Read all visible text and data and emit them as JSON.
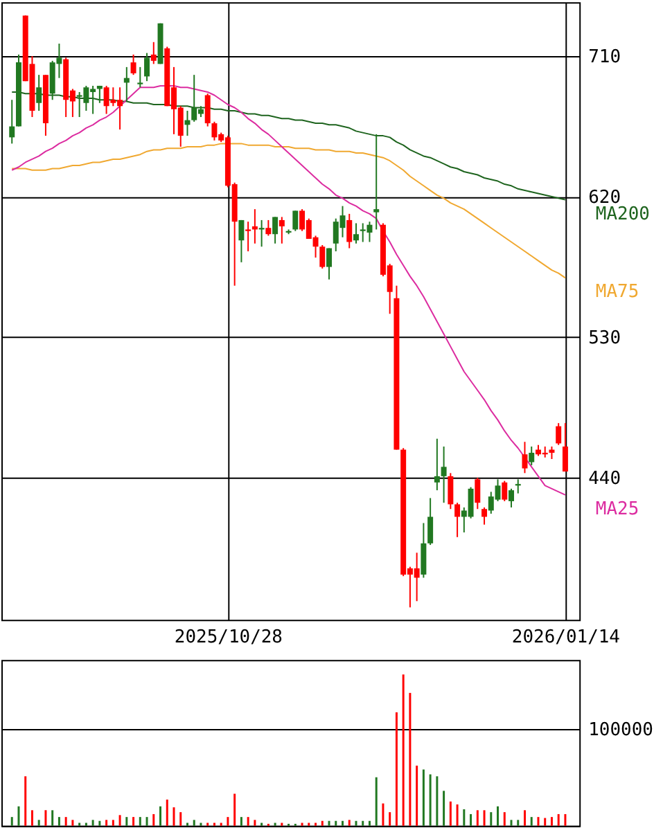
{
  "chart_data": [
    {
      "type": "candlestick",
      "categories": [
        null,
        null,
        null,
        null,
        null,
        null,
        null,
        null,
        null,
        null,
        null,
        null,
        null,
        null,
        null,
        null,
        null,
        null,
        null,
        null,
        null,
        null,
        null,
        null,
        null,
        null,
        null,
        null,
        null,
        null,
        null,
        null,
        "2025/10/28",
        null,
        null,
        null,
        null,
        null,
        null,
        null,
        null,
        null,
        null,
        null,
        null,
        null,
        null,
        null,
        null,
        null,
        null,
        null,
        null,
        null,
        null,
        null,
        null,
        null,
        null,
        null,
        null,
        null,
        null,
        null,
        null,
        null,
        null,
        null,
        null,
        null,
        null,
        null,
        null,
        null,
        null,
        null,
        null,
        null,
        null,
        null,
        null,
        null,
        "2026/01/14"
      ],
      "ohlc": [
        [
          658,
          682,
          654,
          665
        ],
        [
          665,
          711,
          665,
          706
        ],
        [
          736,
          736,
          694,
          694
        ],
        [
          705,
          710,
          671,
          675
        ],
        [
          680,
          698,
          675,
          690
        ],
        [
          698,
          698,
          659,
          667
        ],
        [
          686,
          707,
          682,
          706
        ],
        [
          705,
          718,
          696,
          709
        ],
        [
          708,
          709,
          671,
          682
        ],
        [
          688,
          689,
          671,
          681
        ],
        [
          684,
          687,
          671,
          685
        ],
        [
          680,
          691,
          675,
          690
        ],
        [
          687,
          691,
          673,
          689
        ],
        [
          689,
          691,
          680,
          691
        ],
        [
          690,
          691,
          673,
          678
        ],
        [
          682,
          690,
          678,
          680
        ],
        [
          682,
          690,
          663,
          678
        ],
        [
          693,
          703,
          681,
          696
        ],
        [
          706,
          711,
          698,
          699
        ],
        [
          692,
          703,
          690,
          693
        ],
        [
          697,
          712,
          694,
          709
        ],
        [
          711,
          719,
          705,
          707
        ],
        [
          705,
          731,
          705,
          731
        ],
        [
          715,
          716,
          678,
          678
        ],
        [
          690,
          703,
          660,
          676
        ],
        [
          677,
          678,
          652,
          659
        ],
        [
          666,
          675,
          659,
          669
        ],
        [
          669,
          698,
          668,
          677
        ],
        [
          673,
          678,
          671,
          676
        ],
        [
          685,
          686,
          665,
          667
        ],
        [
          667,
          668,
          656,
          658
        ],
        [
          660,
          661,
          655,
          656
        ],
        [
          658,
          659,
          626,
          627
        ],
        [
          628,
          629,
          563,
          604
        ],
        [
          592,
          605,
          578,
          605
        ],
        [
          599,
          604,
          585,
          598
        ],
        [
          601,
          612,
          590,
          599
        ],
        [
          599,
          605,
          588,
          600
        ],
        [
          600,
          605,
          595,
          596
        ],
        [
          596,
          607,
          590,
          607
        ],
        [
          605,
          607,
          590,
          601
        ],
        [
          597,
          599,
          596,
          598
        ],
        [
          599,
          611,
          598,
          611
        ],
        [
          611,
          612,
          598,
          599
        ],
        [
          605,
          606,
          593,
          593
        ],
        [
          594,
          595,
          581,
          588
        ],
        [
          588,
          589,
          574,
          575
        ],
        [
          575,
          587,
          567,
          587
        ],
        [
          590,
          606,
          585,
          604
        ],
        [
          600,
          614,
          594,
          608
        ],
        [
          605,
          609,
          587,
          591
        ],
        [
          592,
          603,
          590,
          596
        ],
        [
          598,
          603,
          591,
          599
        ],
        [
          597,
          604,
          591,
          602
        ],
        [
          610,
          660,
          599,
          612
        ],
        [
          602,
          603,
          569,
          570
        ],
        [
          576,
          577,
          545,
          559
        ],
        [
          555,
          563,
          458,
          458
        ],
        [
          458,
          459,
          377,
          378
        ],
        [
          382,
          383,
          357,
          378
        ],
        [
          382,
          392,
          361,
          376
        ],
        [
          378,
          411,
          376,
          398
        ],
        [
          398,
          427,
          397,
          415
        ],
        [
          437,
          465,
          432,
          441
        ],
        [
          441,
          460,
          424,
          447
        ],
        [
          441,
          443,
          420,
          423
        ],
        [
          423,
          424,
          402,
          415
        ],
        [
          415,
          421,
          405,
          419
        ],
        [
          415,
          434,
          414,
          433
        ],
        [
          439,
          440,
          420,
          424
        ],
        [
          420,
          421,
          410,
          415
        ],
        [
          419,
          431,
          417,
          428
        ],
        [
          426,
          439,
          425,
          435
        ],
        [
          437,
          438,
          425,
          426
        ],
        [
          425,
          433,
          421,
          432
        ],
        [
          435,
          439,
          430,
          436
        ],
        [
          455,
          463,
          443,
          446
        ],
        [
          450,
          460,
          448,
          456
        ],
        [
          458,
          461,
          454,
          455
        ],
        [
          456,
          460,
          453,
          455
        ],
        [
          458,
          460,
          452,
          456
        ],
        [
          473,
          475,
          461,
          462
        ],
        [
          460,
          475,
          444,
          444
        ]
      ],
      "colors": [
        "#217821",
        "#217821",
        "#ff0000",
        "#ff0000",
        "#217821",
        "#ff0000",
        "#217821",
        "#217821",
        "#ff0000",
        "#ff0000",
        "#217821",
        "#217821",
        "#217821",
        "#217821",
        "#ff0000",
        "#ff0000",
        "#ff0000",
        "#217821",
        "#ff0000",
        "#217821",
        "#217821",
        "#ff0000",
        "#217821",
        "#ff0000",
        "#ff0000",
        "#ff0000",
        "#217821",
        "#217821",
        "#217821",
        "#ff0000",
        "#ff0000",
        "#ff0000",
        "#ff0000",
        "#ff0000",
        "#217821",
        "#ff0000",
        "#ff0000",
        "#217821",
        "#ff0000",
        "#217821",
        "#ff0000",
        "#217821",
        "#217821",
        "#ff0000",
        "#ff0000",
        "#ff0000",
        "#ff0000",
        "#217821",
        "#217821",
        "#217821",
        "#ff0000",
        "#217821",
        "#217821",
        "#217821",
        "#217821",
        "#ff0000",
        "#ff0000",
        "#ff0000",
        "#ff0000",
        "#ff0000",
        "#ff0000",
        "#217821",
        "#217821",
        "#217821",
        "#217821",
        "#ff0000",
        "#ff0000",
        "#217821",
        "#217821",
        "#ff0000",
        "#ff0000",
        "#217821",
        "#217821",
        "#ff0000",
        "#217821",
        "#217821",
        "#ff0000",
        "#217821",
        "#ff0000",
        "#ff0000",
        "#ff0000",
        "#ff0000",
        "#ff0000"
      ],
      "series": [
        {
          "name": "MA200",
          "type": "line",
          "color": "#1e641e",
          "values": [
            687,
            687,
            686,
            686,
            686,
            685,
            685,
            685,
            684,
            684,
            683,
            683,
            683,
            682,
            682,
            682,
            681,
            681,
            680,
            680,
            680,
            679,
            679,
            679,
            678,
            678,
            678,
            677,
            677,
            677,
            676,
            676,
            675,
            675,
            674,
            673,
            673,
            672,
            672,
            671,
            670,
            670,
            669,
            669,
            668,
            667,
            667,
            666,
            666,
            665,
            664,
            662,
            661,
            660,
            659,
            659,
            658,
            655,
            653,
            650,
            648,
            646,
            645,
            643,
            641,
            639,
            638,
            636,
            635,
            634,
            632,
            631,
            630,
            628,
            627,
            625,
            624,
            623,
            622,
            621,
            620,
            619,
            618
          ]
        },
        {
          "name": "MA75",
          "type": "line",
          "color": "#f0a830",
          "values": [
            638,
            638,
            638,
            637,
            637,
            637,
            638,
            638,
            639,
            640,
            640,
            641,
            642,
            642,
            643,
            644,
            644,
            645,
            646,
            647,
            649,
            650,
            650,
            651,
            651,
            651,
            652,
            652,
            652,
            653,
            653,
            654,
            654,
            654,
            654,
            653,
            653,
            653,
            653,
            652,
            652,
            652,
            651,
            651,
            651,
            650,
            650,
            650,
            649,
            649,
            649,
            648,
            648,
            647,
            646,
            645,
            643,
            640,
            637,
            633,
            630,
            627,
            624,
            621,
            619,
            616,
            614,
            612,
            609,
            606,
            603,
            600,
            597,
            594,
            591,
            588,
            585,
            582,
            579,
            576,
            573,
            571,
            568
          ]
        },
        {
          "name": "MA25",
          "type": "line",
          "color": "#dc2ca0",
          "values": [
            637,
            639,
            642,
            644,
            646,
            649,
            651,
            654,
            656,
            659,
            661,
            664,
            666,
            669,
            671,
            674,
            678,
            682,
            686,
            690,
            690,
            690,
            691,
            691,
            691,
            690,
            690,
            689,
            688,
            687,
            685,
            682,
            679,
            677,
            674,
            670,
            667,
            663,
            660,
            656,
            652,
            648,
            644,
            640,
            636,
            632,
            628,
            625,
            621,
            619,
            616,
            614,
            611,
            609,
            606,
            598,
            591,
            583,
            576,
            569,
            563,
            556,
            548,
            540,
            532,
            524,
            516,
            508,
            502,
            496,
            490,
            483,
            477,
            470,
            464,
            459,
            453,
            447,
            441,
            435,
            433,
            431,
            429
          ]
        }
      ],
      "ylim": [
        349,
        744.5
      ],
      "yticks": [
        440,
        530,
        620,
        710
      ],
      "grid": true
    },
    {
      "type": "bar",
      "categories": [
        null,
        null,
        null,
        null,
        null,
        null,
        null,
        null,
        null,
        null,
        null,
        null,
        null,
        null,
        null,
        null,
        null,
        null,
        null,
        null,
        null,
        null,
        null,
        null,
        null,
        null,
        null,
        null,
        null,
        null,
        null,
        null,
        null,
        null,
        null,
        null,
        null,
        null,
        null,
        null,
        null,
        null,
        null,
        null,
        null,
        null,
        null,
        null,
        null,
        null,
        null,
        null,
        null,
        null,
        null,
        null,
        null,
        null,
        null,
        null,
        null,
        null,
        null,
        null,
        null,
        null,
        null,
        null,
        null,
        null,
        null,
        null,
        null,
        null,
        null,
        null,
        null,
        null,
        null,
        null,
        null,
        null,
        null
      ],
      "values": [
        9000,
        20000,
        51000,
        16000,
        6000,
        16000,
        16000,
        9000,
        9000,
        6000,
        3000,
        3000,
        6000,
        5000,
        6000,
        6000,
        11000,
        9000,
        9000,
        9000,
        9000,
        12000,
        20000,
        27000,
        19000,
        14000,
        3000,
        6000,
        3000,
        3000,
        3000,
        3000,
        9000,
        33000,
        9000,
        9000,
        6000,
        3000,
        2000,
        3000,
        3000,
        2000,
        2000,
        3000,
        3000,
        3000,
        5000,
        5000,
        5000,
        5000,
        6000,
        5000,
        5000,
        5000,
        50000,
        23000,
        14000,
        117000,
        156000,
        137000,
        62000,
        58000,
        53000,
        51000,
        36000,
        25000,
        22000,
        17000,
        12000,
        16000,
        16000,
        14000,
        20000,
        14000,
        6000,
        6000,
        16000,
        9000,
        9000,
        8000,
        9000,
        12000,
        12000
      ],
      "ylim": [
        0,
        171000
      ],
      "yticks": [
        {
          "value": 0,
          "label": null
        },
        100000
      ],
      "colors": [
        "#217821",
        "#217821",
        "#ff0000",
        "#ff0000",
        "#217821",
        "#ff0000",
        "#217821",
        "#217821",
        "#ff0000",
        "#ff0000",
        "#217821",
        "#217821",
        "#217821",
        "#217821",
        "#ff0000",
        "#ff0000",
        "#ff0000",
        "#217821",
        "#ff0000",
        "#217821",
        "#217821",
        "#ff0000",
        "#217821",
        "#ff0000",
        "#ff0000",
        "#ff0000",
        "#217821",
        "#217821",
        "#217821",
        "#ff0000",
        "#ff0000",
        "#ff0000",
        "#ff0000",
        "#ff0000",
        "#217821",
        "#ff0000",
        "#ff0000",
        "#217821",
        "#ff0000",
        "#217821",
        "#ff0000",
        "#217821",
        "#217821",
        "#ff0000",
        "#ff0000",
        "#ff0000",
        "#ff0000",
        "#217821",
        "#217821",
        "#217821",
        "#ff0000",
        "#217821",
        "#217821",
        "#217821",
        "#217821",
        "#ff0000",
        "#ff0000",
        "#ff0000",
        "#ff0000",
        "#ff0000",
        "#ff0000",
        "#217821",
        "#217821",
        "#217821",
        "#217821",
        "#ff0000",
        "#ff0000",
        "#217821",
        "#217821",
        "#ff0000",
        "#ff0000",
        "#217821",
        "#217821",
        "#ff0000",
        "#217821",
        "#217821",
        "#ff0000",
        "#217821",
        "#ff0000",
        "#ff0000",
        "#ff0000",
        "#ff0000",
        "#ff0000"
      ],
      "grid": "y"
    }
  ]
}
